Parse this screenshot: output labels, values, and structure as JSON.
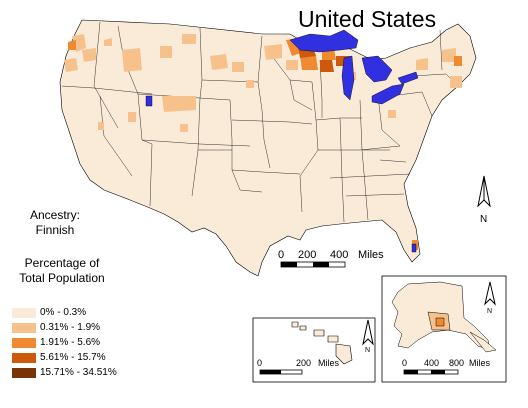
{
  "map": {
    "title": "United States",
    "subject_line1": "Ancestry:",
    "subject_line2": "Finnish",
    "measure_line1": "Percentage of",
    "measure_line2": "Total Population"
  },
  "legend": [
    {
      "label": "0% - 0.3%",
      "color": "#faebd9"
    },
    {
      "label": "0.31% - 1.9%",
      "color": "#f7c18c"
    },
    {
      "label": "1.91% - 5.6%",
      "color": "#f08a32"
    },
    {
      "label": "5.61% - 15.7%",
      "color": "#cd5a0c"
    },
    {
      "label": "15.71% - 34.51%",
      "color": "#7a3306"
    }
  ],
  "colors": {
    "water": "#3030e0",
    "base": "#faebd9",
    "border": "#000000"
  },
  "north_arrow": "N",
  "scalebars": {
    "conus": {
      "ticks": [
        "0",
        "200",
        "400"
      ],
      "unit": "Miles"
    },
    "hawaii": {
      "ticks": [
        "0",
        "200"
      ],
      "unit": "Miles"
    },
    "alaska": {
      "ticks": [
        "0",
        "400",
        "800"
      ],
      "unit": "Miles"
    }
  }
}
